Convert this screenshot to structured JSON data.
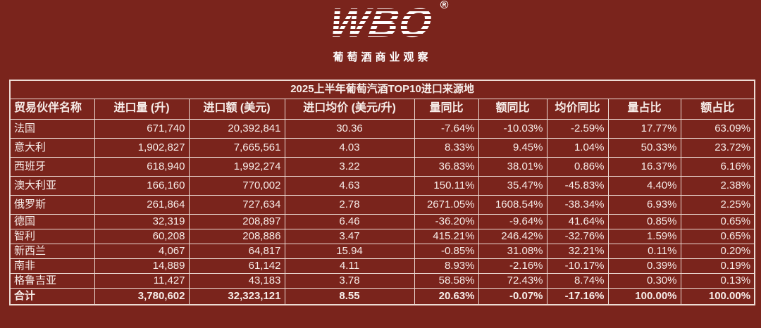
{
  "logo": {
    "brand": "WBO",
    "registered_mark": "®",
    "tagline": "葡萄酒商业观察"
  },
  "chart_data": {
    "type": "table",
    "title": "2025上半年葡萄汽酒TOP10进口来源地",
    "columns": [
      "贸易伙伴名称",
      "进口量 (升)",
      "进口额 (美元)",
      "进口均价 (美元/升)",
      "量同比",
      "额同比",
      "均价同比",
      "量占比",
      "额占比"
    ],
    "rows": [
      [
        "法国",
        "671,740",
        "20,392,841",
        "30.36",
        "-7.64%",
        "-10.03%",
        "-2.59%",
        "17.77%",
        "63.09%"
      ],
      [
        "意大利",
        "1,902,827",
        "7,665,561",
        "4.03",
        "8.33%",
        "9.45%",
        "1.04%",
        "50.33%",
        "23.72%"
      ],
      [
        "西班牙",
        "618,940",
        "1,992,274",
        "3.22",
        "36.83%",
        "38.01%",
        "0.86%",
        "16.37%",
        "6.16%"
      ],
      [
        "澳大利亚",
        "166,160",
        "770,002",
        "4.63",
        "150.11%",
        "35.47%",
        "-45.83%",
        "4.40%",
        "2.38%"
      ],
      [
        "俄罗斯",
        "261,864",
        "727,634",
        "2.78",
        "2671.05%",
        "1608.54%",
        "-38.34%",
        "6.93%",
        "2.25%"
      ],
      [
        "德国",
        "32,319",
        "208,897",
        "6.46",
        "-36.20%",
        "-9.64%",
        "41.64%",
        "0.85%",
        "0.65%"
      ],
      [
        "智利",
        "60,208",
        "208,886",
        "3.47",
        "415.21%",
        "246.42%",
        "-32.76%",
        "1.59%",
        "0.65%"
      ],
      [
        "新西兰",
        "4,067",
        "64,817",
        "15.94",
        "-0.85%",
        "31.08%",
        "32.21%",
        "0.11%",
        "0.20%"
      ],
      [
        "南非",
        "14,889",
        "61,142",
        "4.11",
        "8.93%",
        "-2.16%",
        "-10.17%",
        "0.39%",
        "0.19%"
      ],
      [
        "格鲁吉亚",
        "11,427",
        "43,183",
        "3.78",
        "58.58%",
        "72.43%",
        "8.74%",
        "0.30%",
        "0.13%"
      ]
    ],
    "total_row": [
      "合计",
      "3,780,602",
      "32,323,121",
      "8.55",
      "20.63%",
      "-0.07%",
      "-17.16%",
      "100.00%",
      "100.00%"
    ]
  },
  "colors": {
    "background": "#7A241C",
    "table_border": "#EEDCD5",
    "text": "#F7EDE9",
    "logo": "#FFFFFF"
  }
}
